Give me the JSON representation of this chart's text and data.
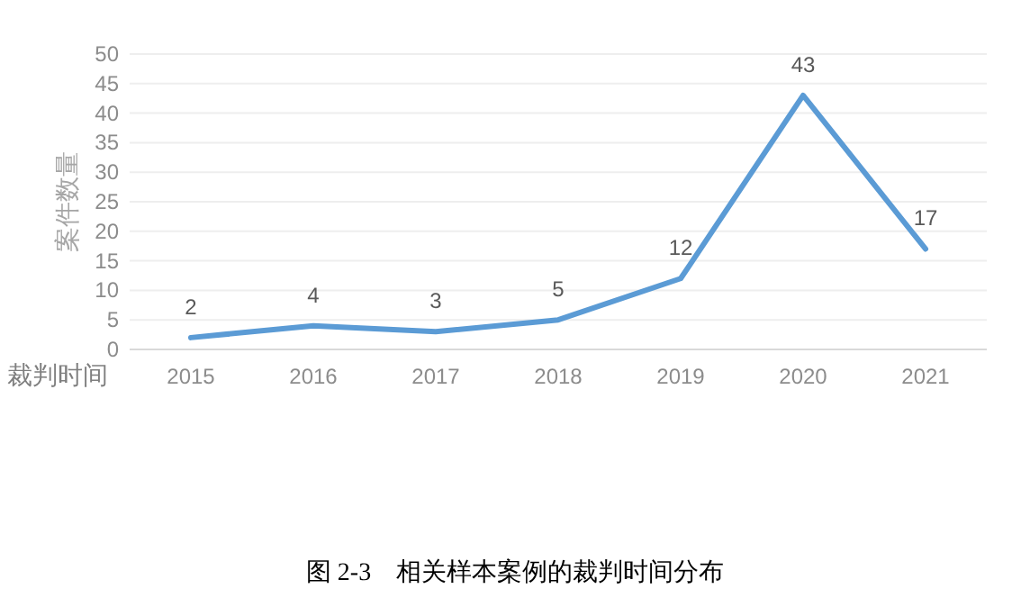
{
  "chart_data": {
    "type": "line",
    "xlabel": "裁判时间",
    "ylabel": "案件数量",
    "categories": [
      "2015",
      "2016",
      "2017",
      "2018",
      "2019",
      "2020",
      "2021"
    ],
    "series": [
      {
        "color": "#5b9bd5",
        "values": [
          2,
          4,
          3,
          5,
          12,
          43,
          17
        ]
      }
    ],
    "ylim": [
      0,
      50
    ],
    "yticks": [
      0,
      5,
      10,
      15,
      20,
      25,
      30,
      35,
      40,
      45,
      50
    ],
    "grid": "y",
    "data_labels": true,
    "annotations": [
      "图 2-3    相关样本案例的裁判时间分布"
    ]
  }
}
